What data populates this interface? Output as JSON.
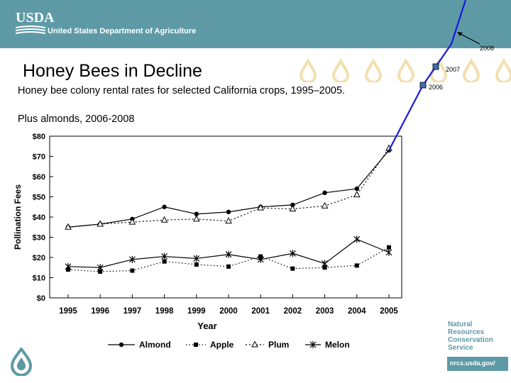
{
  "header": {
    "logo_text": "USDA",
    "department": "United States Department of Agriculture",
    "band_color": "#5e9aa6"
  },
  "slide": {
    "title": "Honey Bees in Decline",
    "subtitle": "Honey bee colony rental rates for selected California crops, 1995–2005.",
    "subtitle_2": "Plus almonds, 2006-2008"
  },
  "footer": {
    "agency_lines": [
      "Natural",
      "Resources",
      "Conservation",
      "Service"
    ],
    "url": "nrcs.usda.gov/"
  },
  "chart_data": {
    "type": "line",
    "title": "",
    "xlabel": "Year",
    "ylabel": "Pollination Fees",
    "categories": [
      "1995",
      "1996",
      "1997",
      "1998",
      "1999",
      "2000",
      "2001",
      "2002",
      "2003",
      "2004",
      "2005"
    ],
    "ylim": [
      0,
      80
    ],
    "y_ticks": [
      0,
      10,
      20,
      30,
      40,
      50,
      60,
      70,
      80
    ],
    "y_tick_labels": [
      "$0",
      "$10",
      "$20",
      "$30",
      "$40",
      "$50",
      "$60",
      "$70",
      "$80"
    ],
    "series": [
      {
        "name": "Almond",
        "marker": "circle",
        "dash": "solid",
        "values": [
          35,
          36.5,
          39,
          45,
          41.5,
          42.5,
          45,
          46,
          52,
          54,
          73
        ]
      },
      {
        "name": "Apple",
        "marker": "square",
        "dash": "dotted",
        "values": [
          14,
          13,
          13.5,
          18,
          16.5,
          15.5,
          20.5,
          14.5,
          15,
          16,
          25
        ]
      },
      {
        "name": "Plum",
        "marker": "triangle",
        "dash": "dashed",
        "values": [
          35,
          36.5,
          37.5,
          38.5,
          39,
          38,
          44.5,
          44,
          45.5,
          51,
          74
        ]
      },
      {
        "name": "Melon",
        "marker": "star",
        "dash": "solid",
        "values": [
          15.5,
          15,
          19,
          20.5,
          19.5,
          21.5,
          19,
          22,
          17,
          29,
          22.5
        ]
      }
    ],
    "almond_extension": {
      "color": "#1a1adc",
      "points": [
        {
          "label": "2006",
          "value": 98
        },
        {
          "label": "2007",
          "value": 118
        },
        {
          "label": "2008",
          "value": 150
        }
      ]
    }
  }
}
